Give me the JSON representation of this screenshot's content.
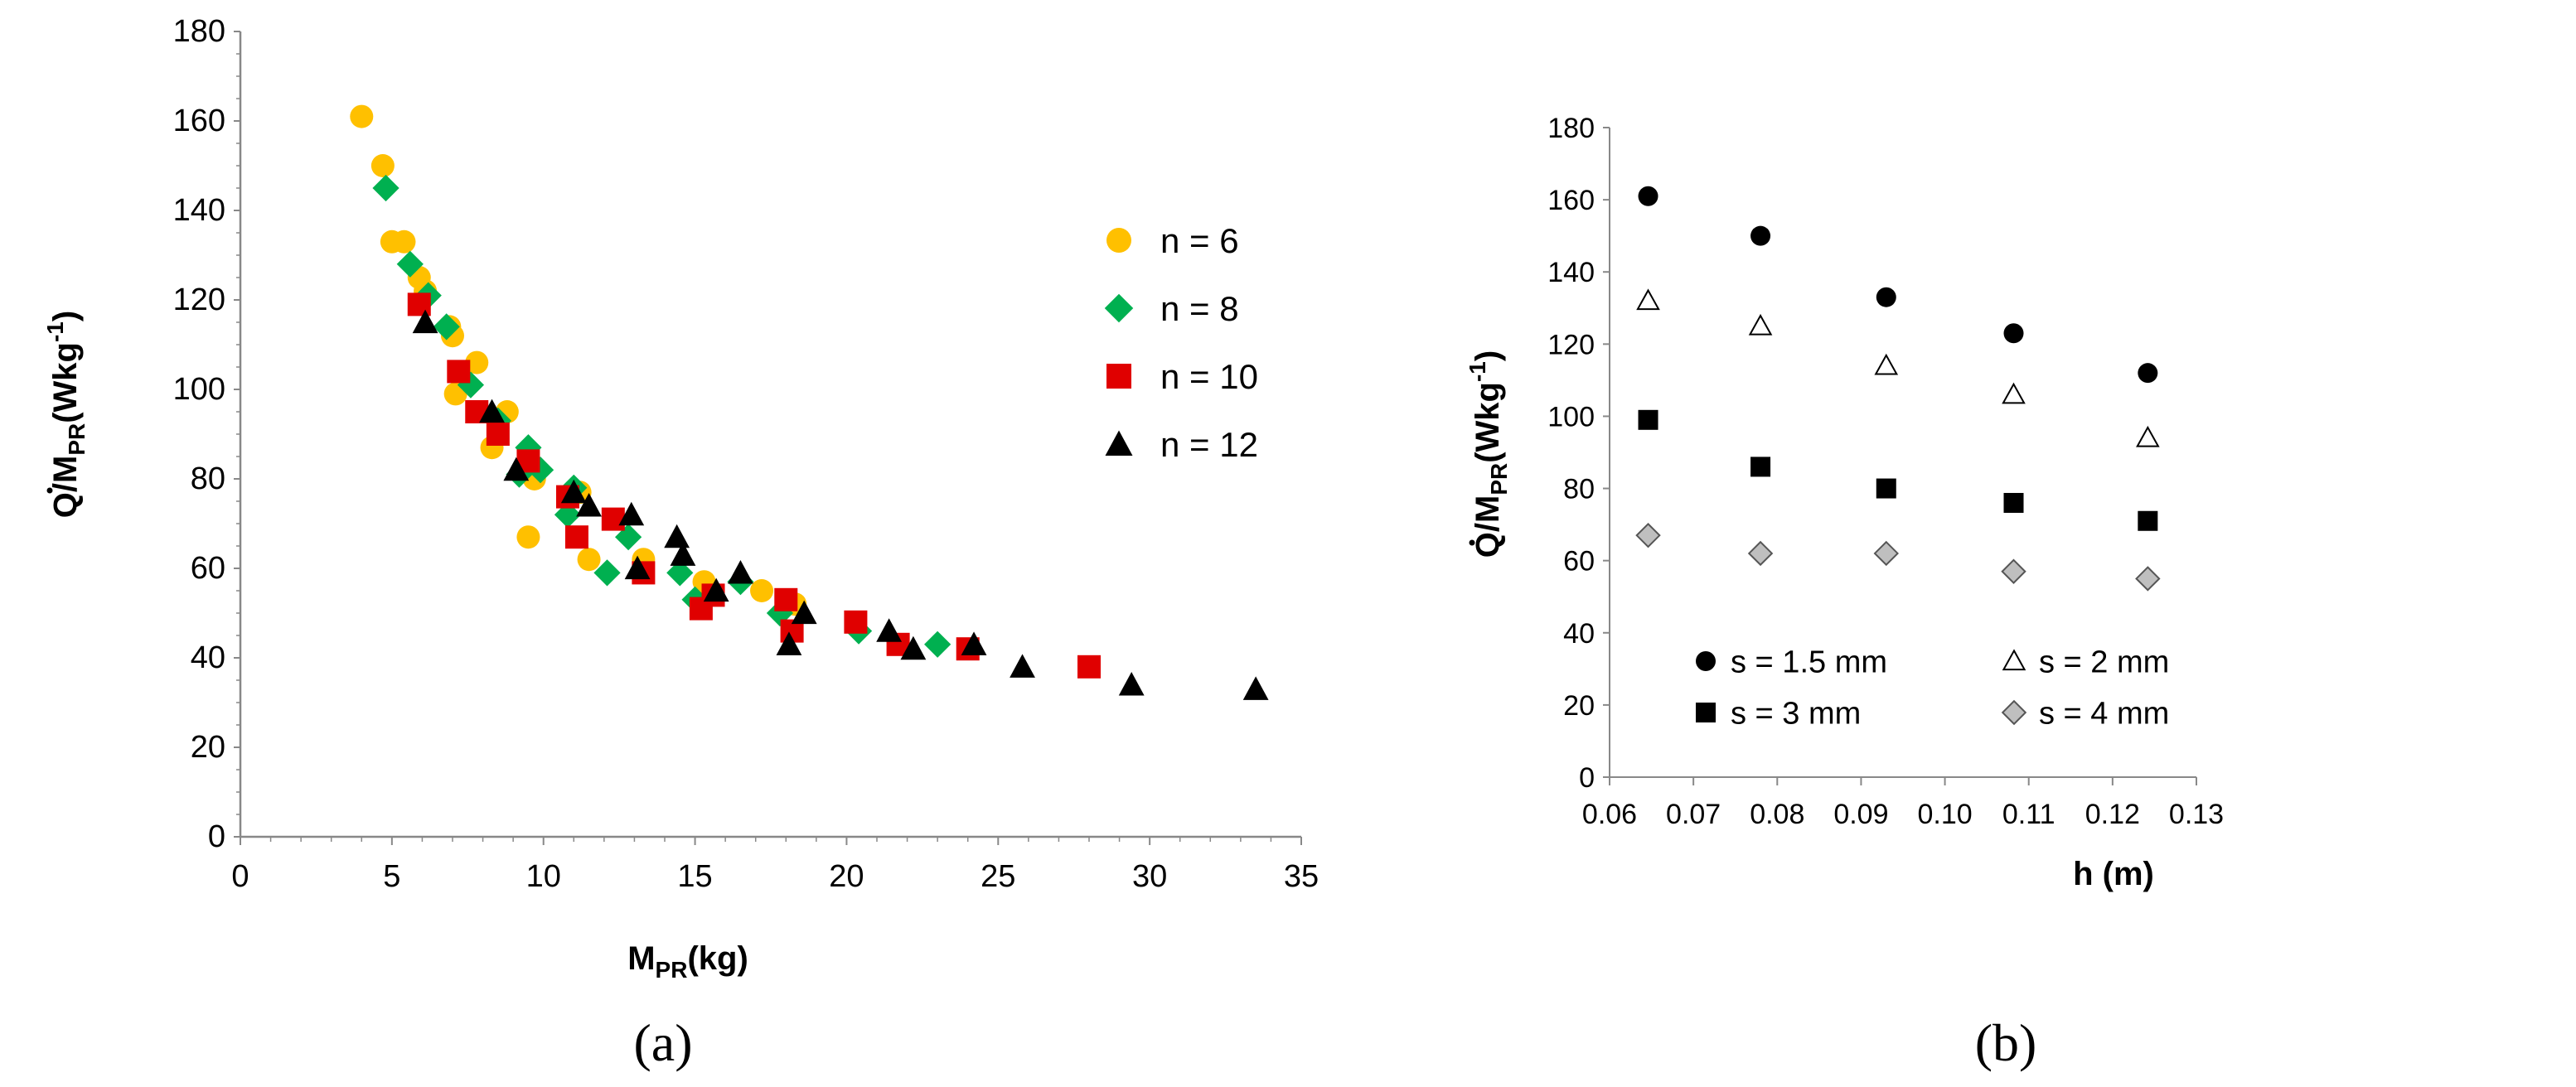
{
  "chart_data": [
    {
      "id": "a",
      "type": "scatter",
      "caption": "(a)",
      "xlabel": {
        "main": "M",
        "sub": "PR",
        "tail": "(kg)"
      },
      "ylabel": {
        "main": "Q/M",
        "sub": "PR",
        "mid": "(Wkg",
        "sup": "-1",
        "end": ")"
      },
      "xlim": [
        0,
        35
      ],
      "ylim": [
        0,
        180
      ],
      "xticks": [
        "0",
        "5",
        "10",
        "15",
        "20",
        "25",
        "30",
        "35"
      ],
      "yticks": [
        "0",
        "20",
        "40",
        "60",
        "80",
        "100",
        "120",
        "140",
        "160",
        "180"
      ],
      "legend_position": "right",
      "series": [
        {
          "name": "n = 6",
          "marker": "circle",
          "color": "#FFC000",
          "points": [
            [
              4.0,
              161
            ],
            [
              4.7,
              150
            ],
            [
              5.0,
              133
            ],
            [
              5.4,
              133
            ],
            [
              5.9,
              125
            ],
            [
              6.1,
              122
            ],
            [
              6.9,
              114
            ],
            [
              7.0,
              112
            ],
            [
              7.1,
              99
            ],
            [
              7.8,
              106
            ],
            [
              8.3,
              87
            ],
            [
              8.8,
              95
            ],
            [
              9.5,
              67
            ],
            [
              9.7,
              80
            ],
            [
              11.2,
              77
            ],
            [
              11.5,
              62
            ],
            [
              13.3,
              62
            ],
            [
              15.3,
              57
            ],
            [
              17.2,
              55
            ],
            [
              18.3,
              52
            ]
          ]
        },
        {
          "name": "n = 8",
          "marker": "diamond",
          "color": "#00B050",
          "points": [
            [
              4.8,
              145
            ],
            [
              5.6,
              128
            ],
            [
              6.2,
              121
            ],
            [
              6.8,
              114
            ],
            [
              7.6,
              101
            ],
            [
              8.5,
              93
            ],
            [
              9.2,
              81
            ],
            [
              9.5,
              87
            ],
            [
              9.9,
              82
            ],
            [
              10.8,
              72
            ],
            [
              11.0,
              78
            ],
            [
              12.1,
              59
            ],
            [
              12.8,
              67
            ],
            [
              14.5,
              59
            ],
            [
              15.0,
              53
            ],
            [
              16.5,
              57
            ],
            [
              17.8,
              50
            ],
            [
              20.4,
              46
            ],
            [
              23.0,
              43
            ]
          ]
        },
        {
          "name": "n = 10",
          "marker": "square",
          "color": "#E00000",
          "points": [
            [
              5.9,
              119
            ],
            [
              7.2,
              104
            ],
            [
              7.8,
              95
            ],
            [
              8.5,
              90
            ],
            [
              9.5,
              84
            ],
            [
              10.8,
              76
            ],
            [
              11.1,
              67
            ],
            [
              12.3,
              71
            ],
            [
              13.3,
              59
            ],
            [
              15.2,
              51
            ],
            [
              15.6,
              54
            ],
            [
              18.0,
              53
            ],
            [
              18.2,
              46
            ],
            [
              20.3,
              48
            ],
            [
              21.7,
              43
            ],
            [
              24.0,
              42
            ],
            [
              28.0,
              38
            ]
          ]
        },
        {
          "name": "n = 12",
          "marker": "triangle",
          "color": "#000000",
          "points": [
            [
              6.1,
              115
            ],
            [
              8.3,
              95
            ],
            [
              9.1,
              82
            ],
            [
              11.0,
              77
            ],
            [
              11.5,
              74
            ],
            [
              12.9,
              72
            ],
            [
              13.1,
              60
            ],
            [
              14.4,
              67
            ],
            [
              14.6,
              63
            ],
            [
              15.7,
              55
            ],
            [
              16.5,
              59
            ],
            [
              18.1,
              43
            ],
            [
              18.6,
              50
            ],
            [
              21.4,
              46
            ],
            [
              22.2,
              42
            ],
            [
              24.2,
              43
            ],
            [
              25.8,
              38
            ],
            [
              29.4,
              34
            ],
            [
              33.5,
              33
            ]
          ]
        }
      ]
    },
    {
      "id": "b",
      "type": "scatter",
      "caption": "(b)",
      "xlabel": {
        "main": "h  (m)"
      },
      "ylabel": {
        "main": "Q/M",
        "sub": "PR",
        "mid": "(Wkg",
        "sup": "-1",
        "end": ")"
      },
      "xlim": [
        0.06,
        0.13
      ],
      "ylim": [
        0,
        180
      ],
      "xticks": [
        "0.06",
        "0.07",
        "0.08",
        "0.09",
        "0.10",
        "0.11",
        "0.12",
        "0.13"
      ],
      "yticks": [
        "0",
        "20",
        "40",
        "60",
        "80",
        "100",
        "120",
        "140",
        "160",
        "180"
      ],
      "legend_position": "bottom-left",
      "series": [
        {
          "name": "s = 1.5 mm",
          "marker": "circle",
          "color": "#000000",
          "points": [
            [
              0.0646,
              161
            ],
            [
              0.078,
              150
            ],
            [
              0.093,
              133
            ],
            [
              0.1082,
              123
            ],
            [
              0.1242,
              112
            ]
          ]
        },
        {
          "name": "s = 2 mm",
          "marker": "triangle-open",
          "color": "#ffffff",
          "points": [
            [
              0.0646,
              132
            ],
            [
              0.078,
              125
            ],
            [
              0.093,
              114
            ],
            [
              0.1082,
              106
            ],
            [
              0.1242,
              94
            ]
          ]
        },
        {
          "name": "s = 3 mm",
          "marker": "square",
          "color": "#000000",
          "points": [
            [
              0.0646,
              99
            ],
            [
              0.078,
              86
            ],
            [
              0.093,
              80
            ],
            [
              0.1082,
              76
            ],
            [
              0.1242,
              71
            ]
          ]
        },
        {
          "name": "s = 4 mm",
          "marker": "diamond",
          "color": "#BFBFBF",
          "points": [
            [
              0.0646,
              67
            ],
            [
              0.078,
              62
            ],
            [
              0.093,
              62
            ],
            [
              0.1082,
              57
            ],
            [
              0.1242,
              55
            ]
          ]
        }
      ]
    }
  ]
}
